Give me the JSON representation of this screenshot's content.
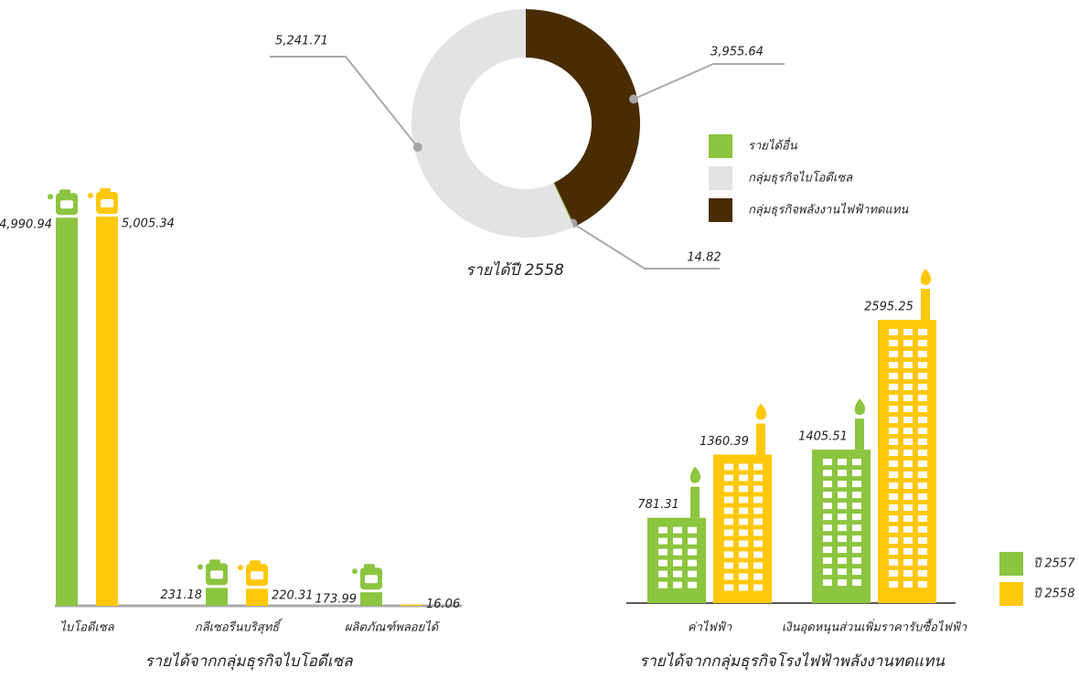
{
  "chart_data": [
    {
      "type": "pie",
      "title": "รายได้ปี 2558",
      "categories": [
        "รายได้อื่น",
        "กลุ่มธุรกิจไบโอดีเซล",
        "กลุ่มธุรกิจพลังงานไฟฟ้าทดแทน"
      ],
      "values": [
        14.82,
        5241.71,
        3955.64
      ],
      "value_labels": [
        "14.82",
        "5,241.71",
        "3,955.64"
      ],
      "colors": [
        "#8cc540",
        "#e3e3e3",
        "#4a2c02"
      ]
    },
    {
      "type": "bar",
      "title": "รายได้จากกลุ่มธุรกิจไบโอดีเซล",
      "categories": [
        "ไบโอดีเซล",
        "กลีเซอรีนบริสุทธิ์",
        "ผลิตภัณฑ์พลอยได้"
      ],
      "series": [
        {
          "color": "#8cc540",
          "values": [
            4990.94,
            231.18,
            173.99
          ],
          "value_labels": [
            "4,990.94",
            "231.18",
            "173.99"
          ]
        },
        {
          "color": "#ffc80a",
          "values": [
            5005.34,
            220.31,
            16.06
          ],
          "value_labels": [
            "5,005.34",
            "220.31",
            "16.06"
          ]
        }
      ]
    },
    {
      "type": "bar",
      "title": "รายได้จากกลุ่มธุรกิจโรงไฟฟ้าพลังงานทดแทน",
      "categories": [
        "ค่าไฟฟ้า",
        "เงินอุดหนุนส่วนเพิ่มราคารับซื้อไฟฟ้า"
      ],
      "series": [
        {
          "name": "ปี 2557",
          "color": "#8cc540",
          "values": [
            781.31,
            1405.51
          ]
        },
        {
          "name": "ปี 2558",
          "color": "#ffc80a",
          "values": [
            1360.39,
            2595.25
          ]
        }
      ]
    }
  ]
}
